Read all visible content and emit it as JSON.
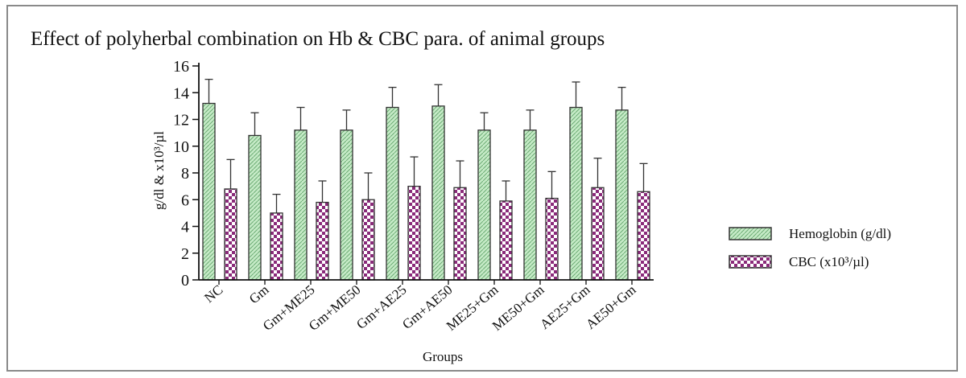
{
  "chart_data": {
    "type": "bar",
    "title": "Effect of polyherbal combination on Hb & CBC para. of animal groups",
    "xlabel": "Groups",
    "ylabel": "g/dl & x10³/µl",
    "ylim": [
      0,
      16
    ],
    "yticks": [
      0,
      2,
      4,
      6,
      8,
      10,
      12,
      14,
      16
    ],
    "categories": [
      "NC",
      "Gm",
      "Gm+ME25",
      "Gm+ME50",
      "Gm+AE25",
      "Gm+AE50",
      "ME25+Gm",
      "ME50+Gm",
      "AE25+Gm",
      "AE50+Gm"
    ],
    "series": [
      {
        "name": "Hemoglobin (g/dl)",
        "values": [
          13.2,
          10.8,
          11.2,
          11.2,
          12.9,
          13.0,
          11.2,
          11.2,
          12.9,
          12.7
        ],
        "errors": [
          1.8,
          1.7,
          1.7,
          1.5,
          1.5,
          1.6,
          1.3,
          1.5,
          1.9,
          1.7
        ],
        "pattern": "hatch",
        "color": "#bfe5c0"
      },
      {
        "name": "CBC (x10³/µl)",
        "values": [
          6.8,
          5.0,
          5.8,
          6.0,
          7.0,
          6.9,
          5.9,
          6.1,
          6.9,
          6.6
        ],
        "errors": [
          2.2,
          1.4,
          1.6,
          2.0,
          2.2,
          2.0,
          1.5,
          2.0,
          2.2,
          2.1
        ],
        "pattern": "checker",
        "color": "#8a2a7a"
      }
    ],
    "grid": false,
    "legend_position": "right"
  }
}
